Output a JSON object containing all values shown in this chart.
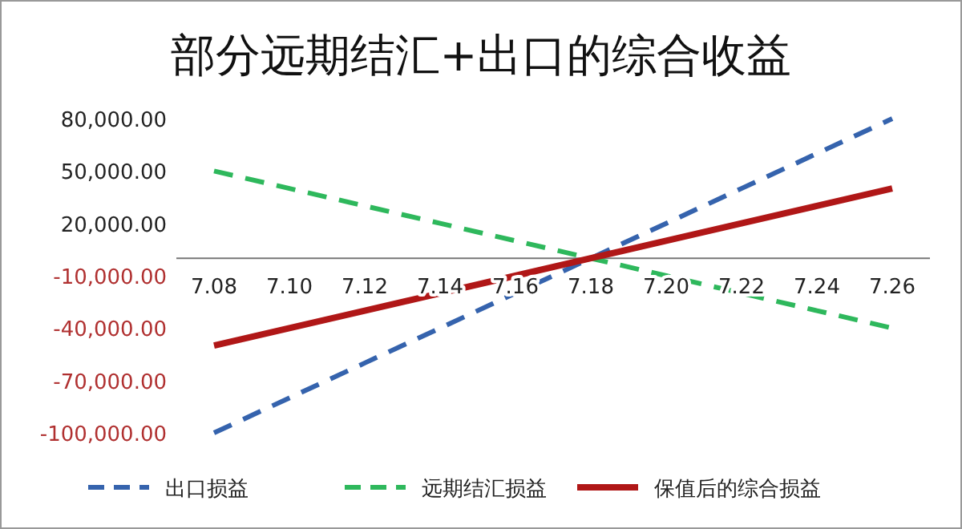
{
  "chart_data": {
    "type": "line",
    "title": "部分远期结汇+出口的综合收益",
    "categories": [
      "7.08",
      "7.10",
      "7.12",
      "7.14",
      "7.16",
      "7.18",
      "7.20",
      "7.22",
      "7.24",
      "7.26"
    ],
    "series": [
      {
        "name": "出口损益",
        "color": "#3563ad",
        "line_style": "dashed",
        "values": [
          -100000,
          -80000,
          -60000,
          -40000,
          -20000,
          0,
          20000,
          40000,
          60000,
          80000
        ]
      },
      {
        "name": "远期结汇损益",
        "color": "#2eb85c",
        "line_style": "dashed",
        "values": [
          50000,
          40000,
          30000,
          20000,
          10000,
          0,
          -10000,
          -20000,
          -30000,
          -40000
        ]
      },
      {
        "name": "保值后的综合损益",
        "color": "#b01717",
        "line_style": "solid",
        "values": [
          -50000,
          -40000,
          -30000,
          -20000,
          -10000,
          0,
          10000,
          20000,
          30000,
          40000
        ]
      }
    ],
    "ylim": [
      -100000,
      80000
    ],
    "yticks": [
      {
        "value": 80000,
        "label": "80,000.00"
      },
      {
        "value": 50000,
        "label": "50,000.00"
      },
      {
        "value": 20000,
        "label": "20,000.00"
      },
      {
        "value": -10000,
        "label": "-10,000.00"
      },
      {
        "value": -40000,
        "label": "-40,000.00"
      },
      {
        "value": -70000,
        "label": "-70,000.00"
      },
      {
        "value": -100000,
        "label": "-100,000.00"
      }
    ],
    "grid": false,
    "legend": "bottom"
  }
}
